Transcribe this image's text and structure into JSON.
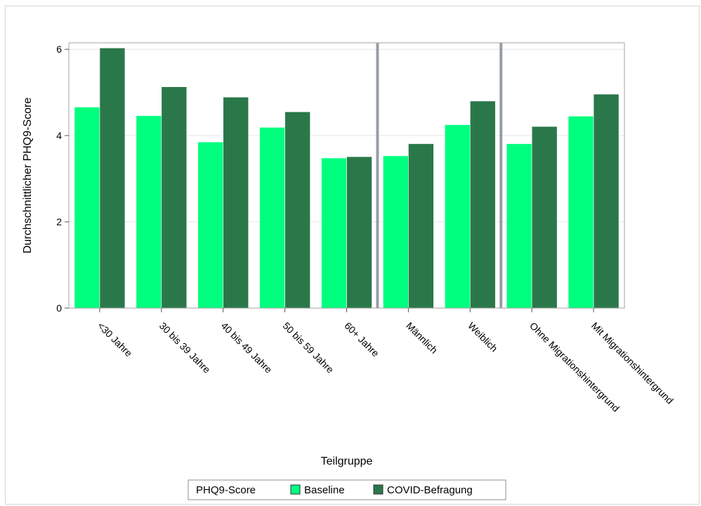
{
  "chart_data": {
    "type": "bar",
    "title": "",
    "xlabel": "Teilgruppe",
    "ylabel": "Durchschnittlicher PHQ9-Score",
    "ylim": [
      0,
      6.15
    ],
    "yticks": [
      "0",
      "2",
      "4",
      "6"
    ],
    "categories": [
      "<30 Jahre",
      "30 bis 39 Jahre",
      "40 bis 49 Jahre",
      "50 bis 59 Jahre",
      "60+ Jahre",
      "Männlich",
      "Weiblich",
      "Ohne Migrationshintergrund",
      "Mit Migrationshintergrund"
    ],
    "group_separators_after": [
      "60+ Jahre",
      "Weiblich"
    ],
    "series": [
      {
        "name": "Baseline",
        "color": "#00ff7f",
        "values": [
          4.66,
          4.46,
          3.85,
          4.19,
          3.48,
          3.53,
          4.25,
          3.81,
          4.45
        ]
      },
      {
        "name": "COVID-Befragung",
        "color": "#2a784a",
        "values": [
          6.03,
          5.13,
          4.89,
          4.55,
          3.51,
          3.81,
          4.8,
          4.21,
          4.96
        ]
      }
    ],
    "legend": {
      "title": "PHQ9-Score",
      "placement": "bottom"
    },
    "grid": true
  }
}
